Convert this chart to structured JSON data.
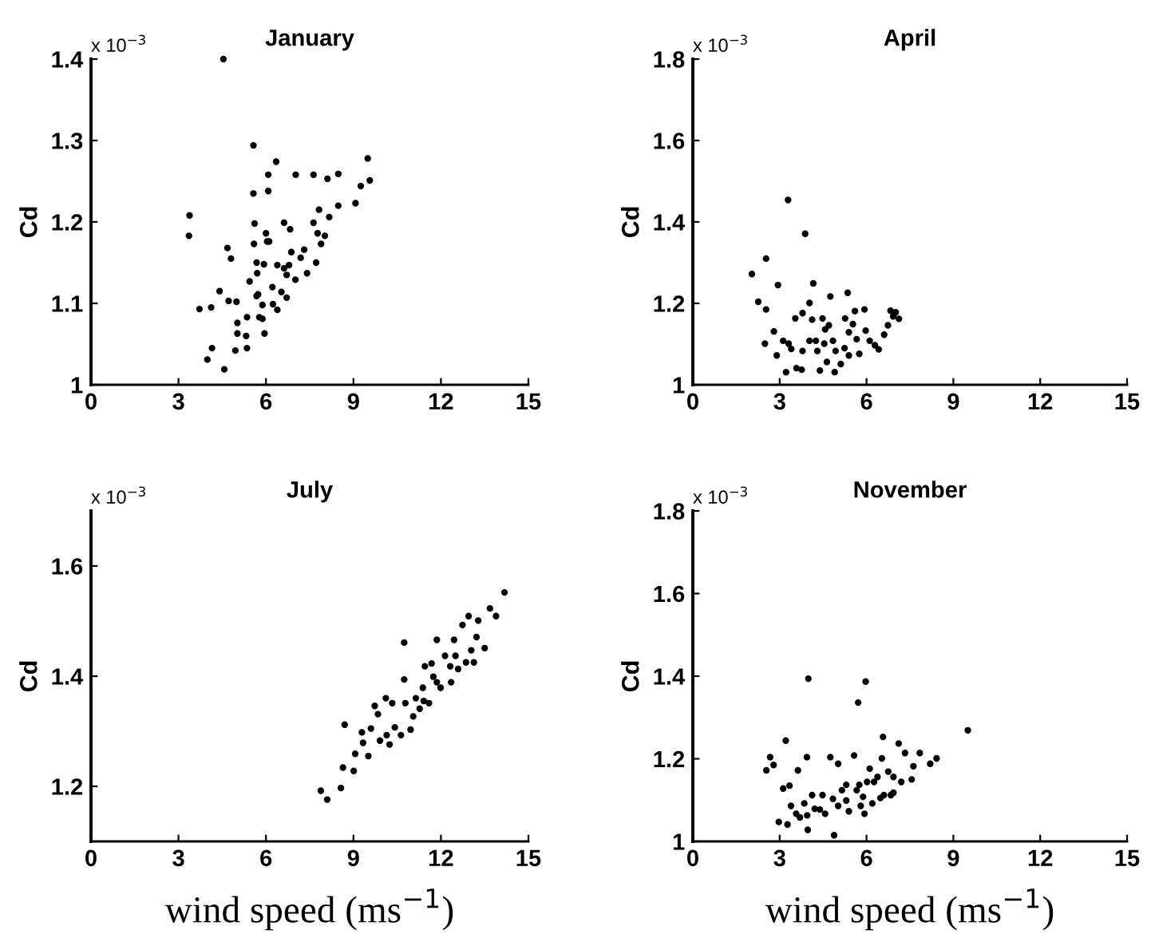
{
  "chart_data": [
    {
      "type": "scatter",
      "title": "January",
      "ylabel": "Cd",
      "annotations": [
        "x 10$^{−3}$"
      ],
      "marker": "circle",
      "grid": false,
      "xlim": [
        0,
        15
      ],
      "ylim": [
        1,
        1.4
      ],
      "xticks": [
        0,
        3,
        6,
        9,
        12,
        15
      ],
      "yticks": [
        1,
        1.1,
        1.2,
        1.3,
        1.4
      ],
      "series": [
        {
          "color": "#000000",
          "x": [
            4.54,
            3.38,
            3.36,
            3.72,
            4.12,
            4.41,
            4.68,
            4.8,
            4.72,
            4.99,
            3.99,
            4.15,
            4.57,
            4.95,
            5.02,
            5.02,
            5.35,
            5.32,
            5.35,
            5.44,
            5.57,
            5.57,
            5.61,
            5.59,
            5.68,
            5.7,
            5.68,
            5.77,
            5.88,
            5.95,
            6.0,
            6.04,
            6.08,
            6.08,
            5.93,
            5.88,
            6.22,
            6.24,
            6.35,
            6.39,
            6.62,
            6.71,
            6.79,
            6.83,
            6.62,
            6.53,
            6.71,
            6.39,
            7.02,
            7.01,
            7.19,
            7.31,
            7.41,
            7.63,
            7.63,
            7.72,
            7.77,
            7.82,
            7.89,
            8.02,
            8.17,
            8.11,
            8.48,
            8.48,
            9.07,
            9.25,
            9.49,
            9.56,
            6.87,
            6.11,
            5.73
          ],
          "values": [
            1.4,
            1.208,
            1.183,
            1.093,
            1.095,
            1.115,
            1.168,
            1.155,
            1.103,
            1.102,
            1.031,
            1.045,
            1.019,
            1.042,
            1.063,
            1.076,
            1.083,
            1.06,
            1.045,
            1.127,
            1.235,
            1.294,
            1.198,
            1.173,
            1.15,
            1.137,
            1.109,
            1.083,
            1.081,
            1.063,
            1.186,
            1.176,
            1.258,
            1.238,
            1.148,
            1.098,
            1.12,
            1.099,
            1.274,
            1.147,
            1.143,
            1.135,
            1.147,
            1.191,
            1.199,
            1.114,
            1.107,
            1.092,
            1.258,
            1.129,
            1.156,
            1.166,
            1.137,
            1.258,
            1.199,
            1.15,
            1.186,
            1.215,
            1.173,
            1.183,
            1.206,
            1.253,
            1.259,
            1.22,
            1.223,
            1.244,
            1.278,
            1.251,
            1.163,
            1.176,
            1.111
          ]
        }
      ]
    },
    {
      "type": "scatter",
      "title": "April",
      "ylabel": "Cd",
      "annotations": [
        "x 10$^{−3}$"
      ],
      "marker": "circle",
      "grid": false,
      "xlim": [
        0,
        15
      ],
      "ylim": [
        1,
        1.8
      ],
      "xticks": [
        0,
        3,
        6,
        9,
        12,
        15
      ],
      "yticks": [
        1,
        1.2,
        1.4,
        1.6,
        1.8
      ],
      "series": [
        {
          "color": "#000000",
          "x": [
            2.04,
            2.26,
            2.53,
            2.53,
            2.49,
            2.8,
            2.94,
            3.29,
            2.9,
            3.12,
            3.22,
            3.31,
            3.4,
            3.58,
            3.54,
            3.76,
            3.79,
            3.88,
            4.03,
            4.03,
            4.16,
            4.12,
            4.25,
            4.3,
            4.39,
            4.48,
            4.54,
            4.63,
            4.75,
            4.7,
            4.84,
            4.93,
            4.9,
            5.11,
            5.24,
            5.35,
            5.26,
            5.39,
            5.53,
            5.6,
            5.66,
            5.75,
            5.93,
            5.97,
            6.11,
            6.29,
            6.42,
            6.61,
            6.74,
            6.83,
            6.92,
            7.01,
            7.12,
            5.39,
            4.57,
            3.79
          ],
          "values": [
            1.272,
            1.204,
            1.185,
            1.31,
            1.101,
            1.131,
            1.245,
            1.454,
            1.072,
            1.108,
            1.031,
            1.101,
            1.088,
            1.041,
            1.163,
            1.037,
            1.083,
            1.371,
            1.108,
            1.201,
            1.249,
            1.16,
            1.108,
            1.083,
            1.035,
            1.163,
            1.101,
            1.056,
            1.217,
            1.146,
            1.108,
            1.083,
            1.031,
            1.051,
            1.09,
            1.226,
            1.163,
            1.072,
            1.149,
            1.181,
            1.112,
            1.076,
            1.185,
            1.133,
            1.108,
            1.097,
            1.087,
            1.123,
            1.146,
            1.182,
            1.168,
            1.178,
            1.162,
            1.129,
            1.136,
            1.176
          ]
        }
      ]
    },
    {
      "type": "scatter",
      "title": "July",
      "ylabel": "Cd",
      "xlabel": "wind speed (ms$^{−1}$)",
      "annotations": [
        "x 10$^{−3}$"
      ],
      "marker": "circle",
      "grid": false,
      "xlim": [
        0,
        15
      ],
      "ylim": [
        1.1,
        1.7
      ],
      "xticks": [
        0,
        3,
        6,
        9,
        12,
        15
      ],
      "yticks": [
        1.2,
        1.4,
        1.6
      ],
      "series": [
        {
          "color": "#000000",
          "x": [
            7.88,
            8.1,
            8.57,
            8.64,
            8.7,
            9.01,
            9.06,
            9.29,
            9.33,
            9.51,
            9.6,
            9.73,
            9.84,
            9.91,
            10.14,
            10.24,
            10.33,
            10.42,
            10.74,
            10.74,
            10.63,
            10.96,
            11.05,
            11.14,
            11.27,
            11.38,
            11.45,
            11.41,
            11.59,
            11.68,
            11.86,
            11.86,
            11.99,
            12.14,
            12.32,
            12.35,
            12.45,
            12.5,
            12.59,
            12.74,
            12.86,
            12.95,
            13.04,
            13.13,
            13.22,
            13.28,
            13.5,
            13.68,
            13.89,
            14.18,
            10.11,
            10.78,
            11.74
          ],
          "values": [
            1.192,
            1.176,
            1.197,
            1.234,
            1.312,
            1.228,
            1.259,
            1.298,
            1.279,
            1.255,
            1.305,
            1.346,
            1.331,
            1.283,
            1.293,
            1.276,
            1.351,
            1.307,
            1.394,
            1.461,
            1.293,
            1.303,
            1.327,
            1.36,
            1.341,
            1.379,
            1.418,
            1.355,
            1.351,
            1.423,
            1.466,
            1.389,
            1.379,
            1.437,
            1.418,
            1.389,
            1.466,
            1.437,
            1.413,
            1.493,
            1.425,
            1.509,
            1.447,
            1.425,
            1.471,
            1.501,
            1.451,
            1.523,
            1.509,
            1.552,
            1.36,
            1.351,
            1.399
          ]
        }
      ]
    },
    {
      "type": "scatter",
      "title": "November",
      "ylabel": "Cd",
      "xlabel": "wind speed (ms$^{−1}$)",
      "annotations": [
        "x 10$^{−3}$"
      ],
      "marker": "circle",
      "grid": false,
      "xlim": [
        0,
        15
      ],
      "ylim": [
        1,
        1.8
      ],
      "xticks": [
        0,
        3,
        6,
        9,
        12,
        15
      ],
      "yticks": [
        1,
        1.2,
        1.4,
        1.6,
        1.8
      ],
      "series": [
        {
          "color": "#000000",
          "x": [
            2.54,
            2.67,
            2.79,
            2.97,
            3.12,
            3.21,
            3.27,
            3.34,
            3.39,
            3.57,
            3.63,
            3.7,
            3.85,
            3.94,
            3.95,
            3.97,
            3.99,
            4.12,
            4.21,
            4.39,
            4.48,
            4.57,
            4.75,
            4.84,
            4.88,
            5.02,
            5.02,
            5.15,
            5.3,
            5.3,
            5.39,
            5.57,
            5.71,
            5.75,
            5.8,
            5.88,
            5.93,
            5.97,
            6.02,
            6.11,
            6.2,
            6.26,
            6.38,
            6.53,
            6.57,
            6.6,
            6.75,
            6.84,
            6.93,
            7.11,
            7.2,
            7.33,
            7.56,
            7.62,
            7.84,
            8.2,
            8.42,
            9.5,
            6.93,
            6.48,
            5.66
          ],
          "values": [
            1.172,
            1.204,
            1.185,
            1.047,
            1.128,
            1.244,
            1.041,
            1.135,
            1.086,
            1.067,
            1.172,
            1.058,
            1.092,
            1.204,
            1.063,
            1.028,
            1.394,
            1.112,
            1.079,
            1.077,
            1.112,
            1.067,
            1.204,
            1.103,
            1.015,
            1.188,
            1.086,
            1.124,
            1.099,
            1.137,
            1.073,
            1.208,
            1.336,
            1.137,
            1.086,
            1.108,
            1.067,
            1.387,
            1.144,
            1.176,
            1.092,
            1.144,
            1.156,
            1.201,
            1.253,
            1.112,
            1.169,
            1.112,
            1.118,
            1.237,
            1.144,
            1.214,
            1.15,
            1.182,
            1.214,
            1.188,
            1.201,
            1.269,
            1.156,
            1.105,
            1.124
          ]
        }
      ]
    }
  ]
}
